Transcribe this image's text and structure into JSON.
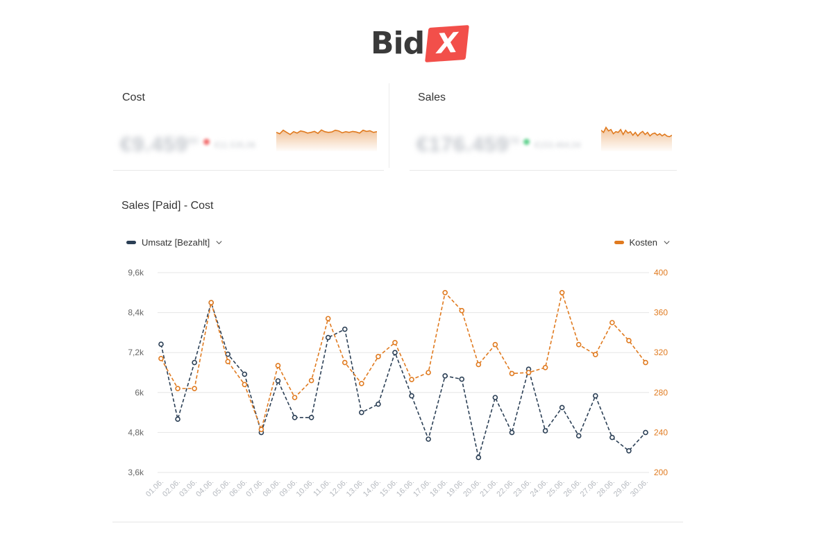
{
  "brand": {
    "name_part": "Bid",
    "mark": "X",
    "mark_color": "#f24f4a",
    "text_color": "#3a3a3a"
  },
  "kpis": [
    {
      "title": "Cost",
      "value": "€9.459",
      "value_suffix": "00",
      "delta": "€11.535,06",
      "status_color": "#f26d6d",
      "sparkline_color": "#e07a1f"
    },
    {
      "title": "Sales",
      "value": "€176.459",
      "value_suffix": "78",
      "delta": "€153.464,04",
      "status_color": "#5fd08c",
      "sparkline_color": "#e07a1f"
    }
  ],
  "panel": {
    "title": "Sales [Paid] - Cost"
  },
  "legend": {
    "left": {
      "label": "Umsatz [Bezahlt]",
      "icon": "chevron-down-icon"
    },
    "right": {
      "label": "Kosten",
      "icon": "chevron-down-icon"
    }
  },
  "colors": {
    "sales": "#2b3f55",
    "cost": "#e07a1f",
    "grid": "#e6e6e6",
    "axis_text_left": "#666",
    "axis_text_right": "#e07a1f",
    "date_labels": "#b5b9bf"
  },
  "chart_data": {
    "type": "line",
    "title": "Sales [Paid] - Cost",
    "x": [
      "01.06.",
      "02.06.",
      "03.06.",
      "04.06.",
      "05.06.",
      "06.06.",
      "07.06.",
      "08.06.",
      "09.06.",
      "10.06.",
      "11.06.",
      "12.06.",
      "13.06.",
      "14.06.",
      "15.06.",
      "16.06.",
      "17.06.",
      "18.06.",
      "19.06.",
      "20.06.",
      "21.06.",
      "22.06.",
      "23.06.",
      "24.06.",
      "25.06.",
      "26.06.",
      "27.06.",
      "28.06.",
      "29.06.",
      "30.06."
    ],
    "series": [
      {
        "name": "Umsatz [Bezahlt]",
        "axis": "left",
        "style": "dashed",
        "values": [
          7450,
          5200,
          6900,
          8700,
          7150,
          6550,
          4800,
          6350,
          5250,
          5250,
          7650,
          7900,
          5400,
          5650,
          7200,
          5900,
          4600,
          6500,
          6400,
          4050,
          5850,
          4800,
          6700,
          4850,
          5550,
          4700,
          5900,
          4650,
          4250,
          4800
        ]
      },
      {
        "name": "Kosten",
        "axis": "right",
        "style": "dashed",
        "values": [
          314,
          284,
          284,
          370,
          311,
          288,
          243,
          307,
          275,
          292,
          354,
          310,
          289,
          316,
          330,
          293,
          300,
          380,
          362,
          308,
          328,
          299,
          300,
          305,
          380,
          328,
          318,
          350,
          332,
          310
        ]
      }
    ],
    "y_left": {
      "ticks": [
        "9,6k",
        "8,4k",
        "7,2k",
        "6k",
        "4,8k",
        "3,6k"
      ],
      "ylim": [
        3600,
        9600
      ]
    },
    "y_right": {
      "ticks": [
        "400",
        "360",
        "320",
        "280",
        "240",
        "200"
      ],
      "ylim": [
        200,
        400
      ]
    },
    "grid": true,
    "legend_placement": "top"
  },
  "sparklines": {
    "cost": [
      0.55,
      0.45,
      0.7,
      0.55,
      0.4,
      0.6,
      0.5,
      0.65,
      0.6,
      0.5,
      0.55,
      0.62,
      0.48,
      0.72,
      0.6,
      0.55,
      0.58,
      0.7,
      0.65,
      0.52,
      0.6,
      0.55,
      0.62,
      0.58,
      0.5,
      0.7,
      0.62,
      0.66,
      0.55,
      0.6
    ],
    "sales": [
      0.7,
      0.55,
      0.9,
      0.65,
      0.75,
      0.45,
      0.6,
      0.55,
      0.75,
      0.4,
      0.7,
      0.5,
      0.6,
      0.35,
      0.55,
      0.3,
      0.5,
      0.62,
      0.4,
      0.55,
      0.3,
      0.45,
      0.5,
      0.35,
      0.45,
      0.3,
      0.42,
      0.28,
      0.25,
      0.35
    ]
  }
}
